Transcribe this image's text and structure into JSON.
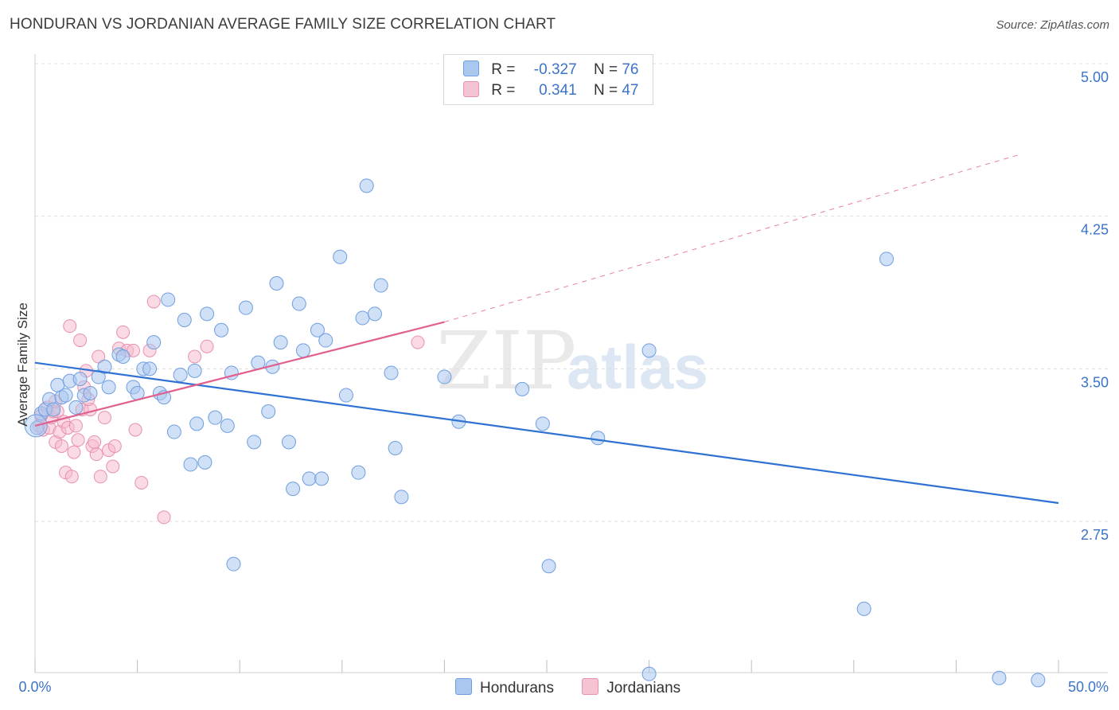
{
  "title": "HONDURAN VS JORDANIAN AVERAGE FAMILY SIZE CORRELATION CHART",
  "source": "Source: ZipAtlas.com",
  "watermark": {
    "zip": "ZIP",
    "atlas": "atlas"
  },
  "legend": {
    "rows": [
      {
        "r_label": "R =",
        "r_value": "-0.327",
        "n_label": "N =",
        "n_value": "76"
      },
      {
        "r_label": "R =",
        "r_value": "0.341",
        "n_label": "N =",
        "n_value": "47"
      }
    ]
  },
  "bottom_legend": [
    "Hondurans",
    "Jordanians"
  ],
  "colors": {
    "blue_fill": "#a9c7ef",
    "blue_stroke": "#6f9ee0",
    "blue_line": "#2f72d3",
    "pink_fill": "#f5b8cb",
    "pink_stroke": "#e890ad",
    "pink_line": "#e0608f",
    "grid": "#dddddd",
    "axis_text": "#3b73c9"
  },
  "chart_data": {
    "type": "scatter",
    "title": "HONDURAN VS JORDANIAN AVERAGE FAMILY SIZE CORRELATION CHART",
    "xlabel": "",
    "ylabel": "Average Family Size",
    "xlim": [
      0,
      50
    ],
    "ylim": [
      2.0,
      5.1
    ],
    "x_tick_labels": [
      "0.0%",
      "50.0%"
    ],
    "y_ticks": [
      2.75,
      3.5,
      4.25,
      5.0
    ],
    "y_tick_labels": [
      "2.75",
      "3.50",
      "4.25",
      "5.00"
    ],
    "series": [
      {
        "name": "Hondurans",
        "r": -0.327,
        "n": 76,
        "trend": {
          "x0": 0,
          "y0": 3.53,
          "x1": 50,
          "y1": 2.84
        },
        "points": [
          [
            0.1,
            3.21
          ],
          [
            0.3,
            3.28
          ],
          [
            0.5,
            3.3
          ],
          [
            0.7,
            3.35
          ],
          [
            0.9,
            3.3
          ],
          [
            1.1,
            3.42
          ],
          [
            1.3,
            3.36
          ],
          [
            1.5,
            3.37
          ],
          [
            1.7,
            3.44
          ],
          [
            2.0,
            3.31
          ],
          [
            2.2,
            3.45
          ],
          [
            2.4,
            3.37
          ],
          [
            2.7,
            3.38
          ],
          [
            3.1,
            3.46
          ],
          [
            3.4,
            3.51
          ],
          [
            3.6,
            3.41
          ],
          [
            4.1,
            3.57
          ],
          [
            4.3,
            3.56
          ],
          [
            4.8,
            3.41
          ],
          [
            5.0,
            3.38
          ],
          [
            5.3,
            3.5
          ],
          [
            5.6,
            3.5
          ],
          [
            5.8,
            3.63
          ],
          [
            6.1,
            3.38
          ],
          [
            6.3,
            3.36
          ],
          [
            6.5,
            3.84
          ],
          [
            6.8,
            3.19
          ],
          [
            7.1,
            3.47
          ],
          [
            7.3,
            3.74
          ],
          [
            7.6,
            3.03
          ],
          [
            7.8,
            3.49
          ],
          [
            7.9,
            3.23
          ],
          [
            8.3,
            3.04
          ],
          [
            8.4,
            3.77
          ],
          [
            8.8,
            3.26
          ],
          [
            9.1,
            3.69
          ],
          [
            9.4,
            3.22
          ],
          [
            9.6,
            3.48
          ],
          [
            9.7,
            2.54
          ],
          [
            10.3,
            3.8
          ],
          [
            10.7,
            3.14
          ],
          [
            10.9,
            3.53
          ],
          [
            11.4,
            3.29
          ],
          [
            11.6,
            3.51
          ],
          [
            11.8,
            3.92
          ],
          [
            12.0,
            3.63
          ],
          [
            12.4,
            3.14
          ],
          [
            12.6,
            2.91
          ],
          [
            12.9,
            3.82
          ],
          [
            13.1,
            3.59
          ],
          [
            13.4,
            2.96
          ],
          [
            13.8,
            3.69
          ],
          [
            14.0,
            2.96
          ],
          [
            14.2,
            3.64
          ],
          [
            14.9,
            4.05
          ],
          [
            15.2,
            3.37
          ],
          [
            15.8,
            2.99
          ],
          [
            16.0,
            3.75
          ],
          [
            16.2,
            4.4
          ],
          [
            16.6,
            3.77
          ],
          [
            16.9,
            3.91
          ],
          [
            17.4,
            3.48
          ],
          [
            17.6,
            3.11
          ],
          [
            17.9,
            2.87
          ],
          [
            20.0,
            3.46
          ],
          [
            20.7,
            3.24
          ],
          [
            23.8,
            3.4
          ],
          [
            24.8,
            3.23
          ],
          [
            25.1,
            2.53
          ],
          [
            27.5,
            3.16
          ],
          [
            30.0,
            3.59
          ],
          [
            30.0,
            2.0
          ],
          [
            40.5,
            2.32
          ],
          [
            41.6,
            4.04
          ],
          [
            47.1,
            1.98
          ],
          [
            49.0,
            1.97
          ]
        ]
      },
      {
        "name": "Jordanians",
        "r": 0.341,
        "n": 47,
        "trend": {
          "x0": 0,
          "y0": 3.22,
          "x1": 20,
          "y1": 3.73,
          "dashed_to": {
            "x": 48,
            "y": 4.55
          }
        },
        "points": [
          [
            0.2,
            3.22
          ],
          [
            0.4,
            3.2
          ],
          [
            0.6,
            3.31
          ],
          [
            0.7,
            3.21
          ],
          [
            0.8,
            3.26
          ],
          [
            0.9,
            3.29
          ],
          [
            1.0,
            3.14
          ],
          [
            1.1,
            3.29
          ],
          [
            1.2,
            3.19
          ],
          [
            1.3,
            3.12
          ],
          [
            1.4,
            3.24
          ],
          [
            1.5,
            2.99
          ],
          [
            1.6,
            3.21
          ],
          [
            1.7,
            3.71
          ],
          [
            1.8,
            2.97
          ],
          [
            1.9,
            3.09
          ],
          [
            2.0,
            3.22
          ],
          [
            2.1,
            3.15
          ],
          [
            2.2,
            3.64
          ],
          [
            2.3,
            3.3
          ],
          [
            2.4,
            3.41
          ],
          [
            2.5,
            3.49
          ],
          [
            2.7,
            3.3
          ],
          [
            2.8,
            3.12
          ],
          [
            2.9,
            3.14
          ],
          [
            3.0,
            3.08
          ],
          [
            3.1,
            3.56
          ],
          [
            3.2,
            2.97
          ],
          [
            3.4,
            3.26
          ],
          [
            3.6,
            3.1
          ],
          [
            3.8,
            3.02
          ],
          [
            3.9,
            3.12
          ],
          [
            4.1,
            3.6
          ],
          [
            4.3,
            3.68
          ],
          [
            4.5,
            3.59
          ],
          [
            4.8,
            3.59
          ],
          [
            4.9,
            3.2
          ],
          [
            5.2,
            2.94
          ],
          [
            5.6,
            3.59
          ],
          [
            5.8,
            3.83
          ],
          [
            6.3,
            2.77
          ],
          [
            7.8,
            3.56
          ],
          [
            8.4,
            3.61
          ],
          [
            18.7,
            3.63
          ],
          [
            0.3,
            3.27
          ],
          [
            1.0,
            3.34
          ],
          [
            2.6,
            3.35
          ]
        ]
      }
    ]
  }
}
